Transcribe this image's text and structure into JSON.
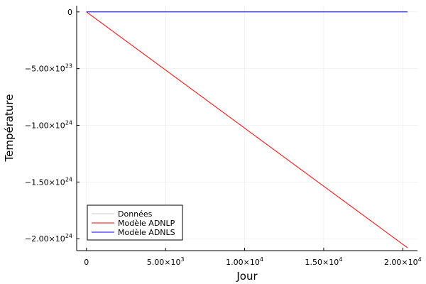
{
  "chart_data": {
    "type": "line",
    "xlabel": "Jour",
    "ylabel": "Température",
    "xlim": [
      -620,
      20930
    ],
    "ylim": [
      -2.105e+24,
      5.5e+22
    ],
    "grid": true,
    "legend_position": "bottom-left",
    "x_ticks": [
      {
        "value": 0,
        "mantissa": "0",
        "exp": ""
      },
      {
        "value": 5000,
        "mantissa": "5.00×10",
        "exp": "3"
      },
      {
        "value": 10000,
        "mantissa": "1.00×10",
        "exp": "4"
      },
      {
        "value": 15000,
        "mantissa": "1.50×10",
        "exp": "4"
      },
      {
        "value": 20000,
        "mantissa": "2.00×10",
        "exp": "4"
      }
    ],
    "y_ticks": [
      {
        "value": 0,
        "mantissa": "0",
        "exp": ""
      },
      {
        "value": -5e+23,
        "mantissa": "−5.00×10",
        "exp": "23"
      },
      {
        "value": -1e+24,
        "mantissa": "−1.00×10",
        "exp": "24"
      },
      {
        "value": -1.5e+24,
        "mantissa": "−1.50×10",
        "exp": "24"
      },
      {
        "value": -2e+24,
        "mantissa": "−2.00×10",
        "exp": "24"
      }
    ],
    "series": [
      {
        "name": "Données",
        "color": "#cccccc",
        "x": [
          0,
          20300
        ],
        "values": [
          0,
          0
        ]
      },
      {
        "name": "Modèle ADNLP",
        "color": "#ff0000",
        "x": [
          0,
          20300
        ],
        "values": [
          0,
          -2.08e+24
        ]
      },
      {
        "name": "Modèle ADNLS",
        "color": "#0000ff",
        "x": [
          0,
          20300
        ],
        "values": [
          0,
          0
        ]
      }
    ]
  }
}
